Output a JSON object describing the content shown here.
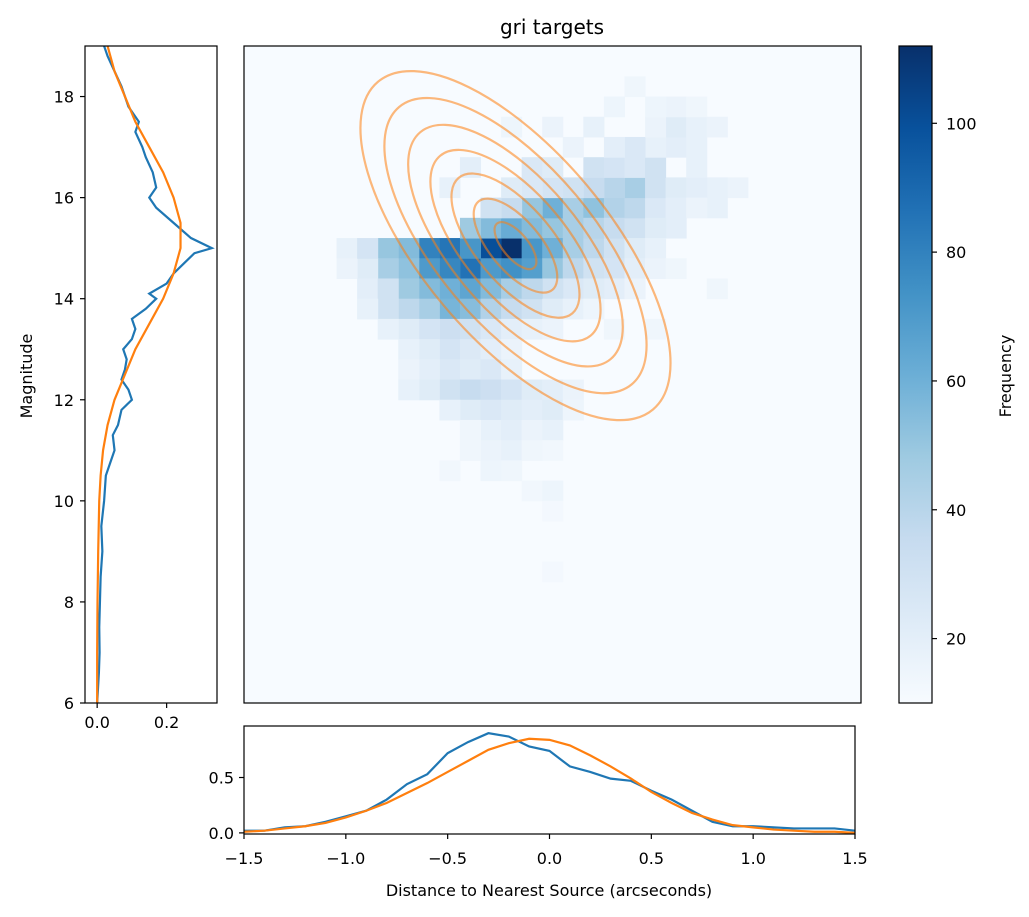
{
  "title": "gri targets",
  "colormap": {
    "stops": [
      "#f7fbff",
      "#deebf7",
      "#c6dbef",
      "#9ecae1",
      "#6baed6",
      "#4292c6",
      "#2171b5",
      "#08519c",
      "#08306b"
    ]
  },
  "colors": {
    "observed": "#1f77b4",
    "model": "#ff7f0e",
    "contour": "#ffbb78"
  },
  "chart_data": [
    {
      "id": "heatmap",
      "type": "heatmap",
      "title": "gri targets",
      "xlim": [
        -1.5,
        1.5
      ],
      "ylim": [
        6,
        19
      ],
      "zlim": [
        10,
        112
      ],
      "colorbar_label": "Frequency",
      "colorbar_ticks": [
        20,
        40,
        60,
        80,
        100
      ],
      "cells": [
        [
          -0.2,
          15.0,
          112
        ],
        [
          -0.3,
          15.0,
          100
        ],
        [
          -0.1,
          15.0,
          72
        ],
        [
          -0.4,
          14.6,
          86
        ],
        [
          -0.5,
          15.0,
          85
        ],
        [
          -0.6,
          15.0,
          80
        ],
        [
          -0.3,
          14.6,
          70
        ],
        [
          -0.2,
          14.6,
          74
        ],
        [
          -0.1,
          14.6,
          68
        ],
        [
          -0.5,
          14.6,
          78
        ],
        [
          -0.6,
          14.6,
          70
        ],
        [
          -0.7,
          15.0,
          55
        ],
        [
          -0.4,
          15.0,
          72
        ],
        [
          -0.8,
          15.0,
          50
        ],
        [
          -0.7,
          14.6,
          52
        ],
        [
          -0.8,
          14.6,
          45
        ],
        [
          -0.5,
          14.2,
          60
        ],
        [
          -0.4,
          14.2,
          65
        ],
        [
          -0.3,
          14.2,
          55
        ],
        [
          -0.2,
          14.2,
          45
        ],
        [
          -0.6,
          14.2,
          55
        ],
        [
          -0.7,
          14.2,
          48
        ],
        [
          -0.5,
          13.8,
          58
        ],
        [
          -0.4,
          13.8,
          54
        ],
        [
          -0.3,
          13.8,
          42
        ],
        [
          -0.6,
          13.8,
          45
        ],
        [
          -0.7,
          13.8,
          38
        ],
        [
          -0.8,
          13.8,
          30
        ],
        [
          -0.2,
          13.8,
          35
        ],
        [
          -0.1,
          13.8,
          30
        ],
        [
          -0.3,
          15.4,
          55
        ],
        [
          -0.2,
          15.4,
          62
        ],
        [
          -0.1,
          15.4,
          55
        ],
        [
          0.0,
          15.4,
          50
        ],
        [
          -0.4,
          15.4,
          48
        ],
        [
          0.1,
          15.4,
          45
        ],
        [
          0.0,
          15.8,
          60
        ],
        [
          -0.1,
          15.8,
          50
        ],
        [
          0.1,
          15.8,
          45
        ],
        [
          0.2,
          15.8,
          52
        ],
        [
          0.3,
          15.8,
          42
        ],
        [
          -0.2,
          15.8,
          35
        ],
        [
          -0.3,
          15.8,
          30
        ],
        [
          0.0,
          15.0,
          60
        ],
        [
          0.1,
          15.0,
          45
        ],
        [
          0.2,
          15.0,
          38
        ],
        [
          0.3,
          15.0,
          30
        ],
        [
          0.0,
          14.6,
          50
        ],
        [
          0.1,
          14.6,
          38
        ],
        [
          0.2,
          14.6,
          30
        ],
        [
          0.3,
          14.6,
          28
        ],
        [
          0.2,
          15.4,
          40
        ],
        [
          0.3,
          15.4,
          35
        ],
        [
          0.4,
          15.4,
          30
        ],
        [
          0.4,
          15.8,
          38
        ],
        [
          0.5,
          15.8,
          25
        ],
        [
          0.4,
          16.2,
          45
        ],
        [
          0.3,
          16.2,
          40
        ],
        [
          0.2,
          16.2,
          35
        ],
        [
          0.1,
          16.2,
          30
        ],
        [
          0.0,
          16.2,
          28
        ],
        [
          -0.1,
          16.2,
          25
        ],
        [
          0.5,
          16.2,
          30
        ],
        [
          0.6,
          16.2,
          22
        ],
        [
          -0.2,
          16.2,
          22
        ],
        [
          0.2,
          16.6,
          30
        ],
        [
          0.3,
          16.6,
          28
        ],
        [
          0.4,
          16.6,
          25
        ],
        [
          0.5,
          16.6,
          30
        ],
        [
          -0.1,
          16.6,
          25
        ],
        [
          0.0,
          16.6,
          22
        ],
        [
          -0.4,
          16.6,
          20
        ],
        [
          -0.5,
          16.2,
          18
        ],
        [
          0.6,
          17.0,
          20
        ],
        [
          0.5,
          17.0,
          18
        ],
        [
          0.4,
          17.0,
          25
        ],
        [
          0.3,
          17.0,
          20
        ],
        [
          0.7,
          17.0,
          18
        ],
        [
          0.1,
          17.0,
          16
        ],
        [
          0.6,
          17.4,
          22
        ],
        [
          0.7,
          17.4,
          18
        ],
        [
          0.5,
          17.4,
          16
        ],
        [
          0.2,
          17.4,
          18
        ],
        [
          0.0,
          17.4,
          16
        ],
        [
          -0.2,
          17.4,
          15
        ],
        [
          0.8,
          17.4,
          16
        ],
        [
          0.6,
          17.8,
          16
        ],
        [
          0.5,
          17.8,
          15
        ],
        [
          0.7,
          17.8,
          14
        ],
        [
          0.4,
          18.2,
          14
        ],
        [
          0.3,
          17.8,
          15
        ],
        [
          0.9,
          16.2,
          16
        ],
        [
          0.8,
          16.2,
          18
        ],
        [
          0.7,
          16.2,
          20
        ],
        [
          0.7,
          16.6,
          18
        ],
        [
          0.8,
          15.8,
          18
        ],
        [
          0.6,
          15.8,
          20
        ],
        [
          0.7,
          15.8,
          16
        ],
        [
          0.6,
          15.4,
          20
        ],
        [
          0.5,
          15.4,
          22
        ],
        [
          0.4,
          15.0,
          22
        ],
        [
          0.5,
          15.0,
          18
        ],
        [
          0.4,
          14.6,
          20
        ],
        [
          0.5,
          14.6,
          16
        ],
        [
          0.6,
          14.6,
          14
        ],
        [
          0.8,
          14.2,
          14
        ],
        [
          0.3,
          14.2,
          20
        ],
        [
          0.1,
          14.2,
          25
        ],
        [
          0.0,
          14.2,
          30
        ],
        [
          -0.1,
          14.2,
          38
        ],
        [
          0.2,
          14.2,
          22
        ],
        [
          0.4,
          14.2,
          16
        ],
        [
          0.0,
          13.8,
          22
        ],
        [
          0.1,
          13.8,
          18
        ],
        [
          0.2,
          13.8,
          15
        ],
        [
          -0.5,
          13.4,
          32
        ],
        [
          -0.4,
          13.4,
          30
        ],
        [
          -0.3,
          13.4,
          25
        ],
        [
          -0.6,
          13.4,
          28
        ],
        [
          -0.7,
          13.4,
          22
        ],
        [
          -0.2,
          13.4,
          20
        ],
        [
          -0.1,
          13.4,
          18
        ],
        [
          0.0,
          13.4,
          16
        ],
        [
          0.5,
          13.4,
          14
        ],
        [
          0.3,
          13.4,
          14
        ],
        [
          -0.9,
          14.6,
          22
        ],
        [
          -1.0,
          15.0,
          18
        ],
        [
          -1.0,
          14.6,
          16
        ],
        [
          -0.9,
          15.0,
          28
        ],
        [
          -0.9,
          14.2,
          20
        ],
        [
          -0.8,
          14.2,
          30
        ],
        [
          -0.9,
          13.8,
          18
        ],
        [
          -0.8,
          13.4,
          18
        ],
        [
          -0.5,
          13.0,
          28
        ],
        [
          -0.4,
          13.0,
          24
        ],
        [
          -0.6,
          13.0,
          22
        ],
        [
          -0.3,
          13.0,
          20
        ],
        [
          -0.7,
          13.0,
          18
        ],
        [
          -0.2,
          13.0,
          16
        ],
        [
          -0.5,
          12.6,
          25
        ],
        [
          -0.4,
          12.6,
          22
        ],
        [
          -0.3,
          12.6,
          25
        ],
        [
          -0.6,
          12.6,
          20
        ],
        [
          -0.2,
          12.6,
          18
        ],
        [
          -0.7,
          12.6,
          16
        ],
        [
          -0.5,
          12.2,
          30
        ],
        [
          -0.4,
          12.2,
          35
        ],
        [
          -0.3,
          12.2,
          32
        ],
        [
          -0.2,
          12.2,
          28
        ],
        [
          -0.1,
          12.2,
          22
        ],
        [
          -0.6,
          12.2,
          22
        ],
        [
          -0.7,
          12.2,
          18
        ],
        [
          0.0,
          12.2,
          20
        ],
        [
          0.1,
          12.2,
          16
        ],
        [
          -0.4,
          11.8,
          22
        ],
        [
          -0.3,
          11.8,
          25
        ],
        [
          -0.2,
          11.8,
          22
        ],
        [
          -0.1,
          11.8,
          20
        ],
        [
          0.0,
          11.8,
          22
        ],
        [
          -0.5,
          11.8,
          18
        ],
        [
          0.1,
          11.8,
          15
        ],
        [
          -0.3,
          11.4,
          18
        ],
        [
          -0.2,
          11.4,
          20
        ],
        [
          -0.1,
          11.4,
          16
        ],
        [
          0.0,
          11.4,
          18
        ],
        [
          -0.4,
          11.4,
          14
        ],
        [
          -0.3,
          11.0,
          16
        ],
        [
          -0.2,
          11.0,
          18
        ],
        [
          -0.4,
          11.0,
          14
        ],
        [
          -0.5,
          10.6,
          13
        ],
        [
          -0.3,
          10.6,
          15
        ],
        [
          -0.2,
          10.6,
          14
        ],
        [
          -0.1,
          11.0,
          14
        ],
        [
          0.0,
          11.0,
          13
        ],
        [
          -0.1,
          10.2,
          13
        ],
        [
          0.0,
          10.2,
          15
        ],
        [
          0.0,
          9.8,
          12
        ],
        [
          0.0,
          8.6,
          12
        ]
      ]
    },
    {
      "id": "contours",
      "type": "line",
      "xlim": [
        -1.5,
        1.5
      ],
      "ylim": [
        6,
        19
      ],
      "ellipses": [
        {
          "cx": -0.18,
          "cy": 15.05,
          "rx": 0.14,
          "ry": 0.25
        },
        {
          "cx": -0.18,
          "cy": 15.05,
          "rx": 0.28,
          "ry": 0.5
        },
        {
          "cx": -0.18,
          "cy": 15.05,
          "rx": 0.43,
          "ry": 0.76
        },
        {
          "cx": -0.18,
          "cy": 15.05,
          "rx": 0.57,
          "ry": 1.02
        },
        {
          "cx": -0.18,
          "cy": 15.05,
          "rx": 0.72,
          "ry": 1.28
        },
        {
          "cx": -0.18,
          "cy": 15.05,
          "rx": 0.88,
          "ry": 1.56
        },
        {
          "cx": -0.18,
          "cy": 15.05,
          "rx": 1.04,
          "ry": 1.85
        }
      ]
    },
    {
      "id": "marginal-y",
      "type": "line",
      "xlabel": "",
      "ylabel": "Magnitude",
      "xlim": [
        -0.035,
        0.345
      ],
      "ylim": [
        6,
        19
      ],
      "xticks": [
        0.0,
        0.2
      ],
      "xtick_labels": [
        "0.0",
        "0.2"
      ],
      "yticks": [
        6,
        8,
        10,
        12,
        14,
        16,
        18
      ],
      "ytick_labels": [
        "6",
        "8",
        "10",
        "12",
        "14",
        "16",
        "18"
      ],
      "series": [
        {
          "y": [
            6.0,
            6.6,
            7.0,
            7.5,
            8.0,
            8.5,
            9.0,
            9.5,
            10.0,
            10.5,
            10.8,
            11.0,
            11.3,
            11.5,
            11.8,
            12.0,
            12.2,
            12.4,
            12.6,
            12.8,
            13.0,
            13.2,
            13.4,
            13.6,
            13.8,
            14.0,
            14.1,
            14.3,
            14.5,
            14.7,
            14.9,
            15.0,
            15.2,
            15.5,
            15.8,
            16.0,
            16.2,
            16.5,
            16.8,
            17.0,
            17.3,
            17.5,
            17.8,
            18.0,
            18.2,
            18.5,
            18.8,
            19.0
          ],
          "x": [
            0.0,
            0.005,
            0.007,
            0.006,
            0.008,
            0.01,
            0.015,
            0.012,
            0.02,
            0.025,
            0.04,
            0.05,
            0.045,
            0.06,
            0.07,
            0.1,
            0.09,
            0.07,
            0.08,
            0.085,
            0.075,
            0.1,
            0.11,
            0.1,
            0.14,
            0.17,
            0.15,
            0.2,
            0.22,
            0.25,
            0.28,
            0.33,
            0.27,
            0.22,
            0.17,
            0.15,
            0.17,
            0.16,
            0.14,
            0.13,
            0.11,
            0.12,
            0.09,
            0.08,
            0.07,
            0.05,
            0.03,
            0.02
          ]
        },
        {
          "y": [
            6.0,
            7.0,
            8.0,
            9.0,
            10.0,
            10.5,
            11.0,
            11.5,
            12.0,
            12.5,
            13.0,
            13.5,
            14.0,
            14.5,
            15.0,
            15.5,
            16.0,
            16.5,
            17.0,
            17.5,
            18.0,
            18.5,
            19.0
          ],
          "x": [
            0.0,
            0.0,
            0.001,
            0.003,
            0.006,
            0.01,
            0.017,
            0.03,
            0.05,
            0.08,
            0.11,
            0.15,
            0.19,
            0.22,
            0.24,
            0.24,
            0.22,
            0.19,
            0.15,
            0.11,
            0.08,
            0.05,
            0.03
          ]
        }
      ]
    },
    {
      "id": "marginal-x",
      "type": "line",
      "xlabel": "Distance to Nearest Source (arcseconds)",
      "ylabel": "",
      "xlim": [
        -1.5,
        1.5
      ],
      "ylim": [
        -0.01,
        0.965
      ],
      "xticks": [
        -1.5,
        -1.0,
        -0.5,
        0.0,
        0.5,
        1.0,
        1.5
      ],
      "xtick_labels": [
        "−1.5",
        "−1.0",
        "−0.5",
        "0.0",
        "0.5",
        "1.0",
        "1.5"
      ],
      "yticks": [
        0.0,
        0.5
      ],
      "ytick_labels": [
        "0.0",
        "0.5"
      ],
      "series": [
        {
          "x": [
            -1.5,
            -1.4,
            -1.3,
            -1.2,
            -1.1,
            -1.0,
            -0.9,
            -0.8,
            -0.7,
            -0.6,
            -0.5,
            -0.4,
            -0.3,
            -0.2,
            -0.1,
            0.0,
            0.1,
            0.2,
            0.3,
            0.4,
            0.5,
            0.6,
            0.7,
            0.8,
            0.9,
            1.0,
            1.1,
            1.2,
            1.3,
            1.4,
            1.5
          ],
          "y": [
            0.02,
            0.02,
            0.05,
            0.06,
            0.1,
            0.15,
            0.2,
            0.3,
            0.44,
            0.53,
            0.72,
            0.82,
            0.9,
            0.87,
            0.78,
            0.74,
            0.6,
            0.55,
            0.49,
            0.47,
            0.38,
            0.3,
            0.2,
            0.1,
            0.06,
            0.06,
            0.05,
            0.04,
            0.04,
            0.04,
            0.02
          ]
        },
        {
          "x": [
            -1.5,
            -1.4,
            -1.3,
            -1.2,
            -1.1,
            -1.0,
            -0.9,
            -0.8,
            -0.7,
            -0.6,
            -0.5,
            -0.4,
            -0.3,
            -0.2,
            -0.1,
            0.0,
            0.1,
            0.2,
            0.3,
            0.4,
            0.5,
            0.6,
            0.7,
            0.8,
            0.9,
            1.0,
            1.1,
            1.2,
            1.3,
            1.4,
            1.5
          ],
          "y": [
            0.01,
            0.02,
            0.04,
            0.06,
            0.09,
            0.14,
            0.2,
            0.27,
            0.36,
            0.45,
            0.55,
            0.65,
            0.75,
            0.81,
            0.85,
            0.84,
            0.79,
            0.7,
            0.6,
            0.49,
            0.37,
            0.27,
            0.18,
            0.12,
            0.07,
            0.05,
            0.03,
            0.02,
            0.01,
            0.01,
            0.0
          ]
        }
      ]
    }
  ]
}
